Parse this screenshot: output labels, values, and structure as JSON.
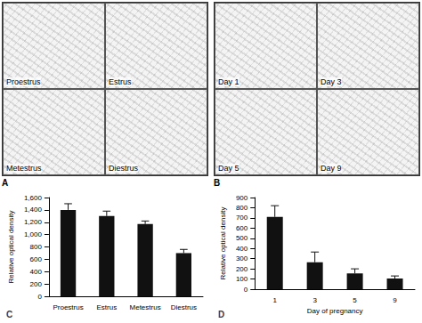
{
  "image_panels": [
    {
      "letter": "A",
      "labels": [
        "Proestrus",
        "Estrus",
        "Metestrus",
        "Diestrus"
      ]
    },
    {
      "letter": "B",
      "labels": [
        "Day 1",
        "Day 3",
        "Day 5",
        "Day 9"
      ]
    }
  ],
  "chart_data": [
    {
      "type": "bar",
      "title": "C",
      "categories": [
        "Proestrus",
        "Estrus",
        "Metestrus",
        "Diestrus"
      ],
      "values": [
        1400,
        1300,
        1170,
        700
      ],
      "errors": [
        100,
        80,
        50,
        60
      ],
      "ylabel": "Relative optical density",
      "ylim": [
        0,
        1600
      ],
      "yticks": [
        0,
        200,
        400,
        600,
        800,
        1000,
        1200,
        1400,
        1600
      ],
      "color": "#111111"
    },
    {
      "type": "bar",
      "title": "D",
      "categories": [
        "1",
        "3",
        "5",
        "9"
      ],
      "values": [
        710,
        265,
        155,
        105
      ],
      "errors": [
        110,
        100,
        45,
        25
      ],
      "xlabel": "Day of pregnancy",
      "ylabel": "Relative optical density",
      "ylim": [
        0,
        900
      ],
      "yticks": [
        0,
        100,
        200,
        300,
        400,
        500,
        600,
        700,
        800,
        900
      ],
      "color": "#111111"
    }
  ]
}
